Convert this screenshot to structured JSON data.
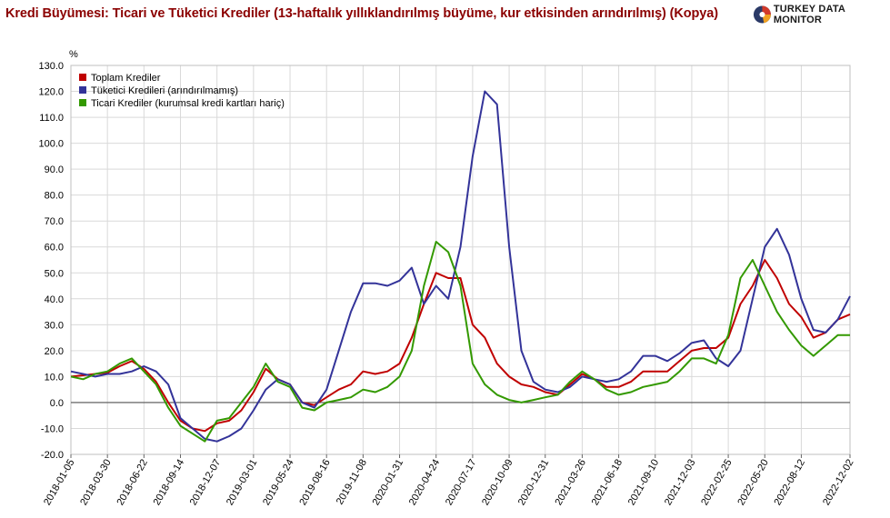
{
  "title": "Kredi Büyümesi: Ticari ve Tüketici Krediler (13-haftalık yıllıklandırılmış büyüme, kur etkisinden arındırılmış) (Kopya)",
  "brand": "TURKEY DATA MONITOR",
  "chart_data": {
    "type": "line",
    "ylabel": "%",
    "ylim": [
      -20,
      130
    ],
    "y_ticks": [
      "-20.0",
      "-10.0",
      "0.0",
      "10.0",
      "20.0",
      "30.0",
      "40.0",
      "50.0",
      "60.0",
      "70.0",
      "80.0",
      "90.0",
      "100.0",
      "110.0",
      "120.0",
      "130.0"
    ],
    "x_tick_labels": [
      "2018-01-05",
      "2018-03-30",
      "2018-06-22",
      "2018-09-14",
      "2018-12-07",
      "2019-03-01",
      "2019-05-24",
      "2019-08-16",
      "2019-11-08",
      "2020-01-31",
      "2020-04-24",
      "2020-07-17",
      "2020-10-09",
      "2020-12-31",
      "2021-03-26",
      "2021-06-18",
      "2021-09-10",
      "2021-12-03",
      "2022-02-25",
      "2022-05-20",
      "2022-08-12",
      "2022-12-02"
    ],
    "x_range": [
      "2018-01-05",
      "2022-12-02"
    ],
    "grid": true,
    "zero_line": true,
    "legend_position": "top-left",
    "series": [
      {
        "name": "Toplam Krediler",
        "color": "#c00000",
        "points": [
          [
            "2018-01-05",
            10
          ],
          [
            "2018-02-02",
            10.5
          ],
          [
            "2018-03-02",
            11
          ],
          [
            "2018-03-30",
            11.5
          ],
          [
            "2018-04-27",
            14
          ],
          [
            "2018-05-25",
            16
          ],
          [
            "2018-06-22",
            13
          ],
          [
            "2018-07-20",
            8
          ],
          [
            "2018-08-17",
            0
          ],
          [
            "2018-09-14",
            -7
          ],
          [
            "2018-10-12",
            -10
          ],
          [
            "2018-11-09",
            -11
          ],
          [
            "2018-12-07",
            -8
          ],
          [
            "2019-01-04",
            -7
          ],
          [
            "2019-02-01",
            -3
          ],
          [
            "2019-03-01",
            4
          ],
          [
            "2019-03-29",
            13
          ],
          [
            "2019-04-26",
            9
          ],
          [
            "2019-05-24",
            7
          ],
          [
            "2019-06-21",
            0
          ],
          [
            "2019-07-19",
            -1
          ],
          [
            "2019-08-16",
            2
          ],
          [
            "2019-09-13",
            5
          ],
          [
            "2019-10-11",
            7
          ],
          [
            "2019-11-08",
            12
          ],
          [
            "2019-12-06",
            11
          ],
          [
            "2020-01-03",
            12
          ],
          [
            "2020-01-31",
            15
          ],
          [
            "2020-02-28",
            25
          ],
          [
            "2020-03-27",
            38
          ],
          [
            "2020-04-24",
            50
          ],
          [
            "2020-05-22",
            48
          ],
          [
            "2020-06-19",
            48
          ],
          [
            "2020-07-17",
            30
          ],
          [
            "2020-08-14",
            25
          ],
          [
            "2020-09-11",
            15
          ],
          [
            "2020-10-09",
            10
          ],
          [
            "2020-11-06",
            7
          ],
          [
            "2020-12-04",
            6
          ],
          [
            "2020-12-31",
            4
          ],
          [
            "2021-01-29",
            3
          ],
          [
            "2021-02-26",
            7
          ],
          [
            "2021-03-26",
            11
          ],
          [
            "2021-04-23",
            9
          ],
          [
            "2021-05-21",
            6
          ],
          [
            "2021-06-18",
            6
          ],
          [
            "2021-07-16",
            8
          ],
          [
            "2021-08-13",
            12
          ],
          [
            "2021-09-10",
            12
          ],
          [
            "2021-10-08",
            12
          ],
          [
            "2021-11-05",
            16
          ],
          [
            "2021-12-03",
            20
          ],
          [
            "2021-12-31",
            21
          ],
          [
            "2022-01-28",
            21
          ],
          [
            "2022-02-25",
            25
          ],
          [
            "2022-03-25",
            38
          ],
          [
            "2022-04-22",
            45
          ],
          [
            "2022-05-20",
            55
          ],
          [
            "2022-06-17",
            48
          ],
          [
            "2022-07-15",
            38
          ],
          [
            "2022-08-12",
            33
          ],
          [
            "2022-09-09",
            25
          ],
          [
            "2022-10-07",
            27
          ],
          [
            "2022-11-04",
            32
          ],
          [
            "2022-12-02",
            34
          ]
        ]
      },
      {
        "name": "Tüketici Kredileri (arındırılmamış)",
        "color": "#333399",
        "points": [
          [
            "2018-01-05",
            12
          ],
          [
            "2018-02-02",
            11
          ],
          [
            "2018-03-02",
            10
          ],
          [
            "2018-03-30",
            11
          ],
          [
            "2018-04-27",
            11
          ],
          [
            "2018-05-25",
            12
          ],
          [
            "2018-06-22",
            14
          ],
          [
            "2018-07-20",
            12
          ],
          [
            "2018-08-17",
            7
          ],
          [
            "2018-09-14",
            -6
          ],
          [
            "2018-10-12",
            -10
          ],
          [
            "2018-11-09",
            -14
          ],
          [
            "2018-12-07",
            -15
          ],
          [
            "2019-01-04",
            -13
          ],
          [
            "2019-02-01",
            -10
          ],
          [
            "2019-03-01",
            -3
          ],
          [
            "2019-03-29",
            5
          ],
          [
            "2019-04-26",
            9
          ],
          [
            "2019-05-24",
            7
          ],
          [
            "2019-06-21",
            0
          ],
          [
            "2019-07-19",
            -2
          ],
          [
            "2019-08-16",
            5
          ],
          [
            "2019-09-13",
            20
          ],
          [
            "2019-10-11",
            35
          ],
          [
            "2019-11-08",
            46
          ],
          [
            "2019-12-06",
            46
          ],
          [
            "2020-01-03",
            45
          ],
          [
            "2020-01-31",
            47
          ],
          [
            "2020-02-28",
            52
          ],
          [
            "2020-03-27",
            38
          ],
          [
            "2020-04-24",
            45
          ],
          [
            "2020-05-22",
            40
          ],
          [
            "2020-06-19",
            60
          ],
          [
            "2020-07-17",
            95
          ],
          [
            "2020-08-14",
            120
          ],
          [
            "2020-09-11",
            115
          ],
          [
            "2020-10-09",
            60
          ],
          [
            "2020-11-06",
            20
          ],
          [
            "2020-12-04",
            8
          ],
          [
            "2020-12-31",
            5
          ],
          [
            "2021-01-29",
            4
          ],
          [
            "2021-02-26",
            6
          ],
          [
            "2021-03-26",
            10
          ],
          [
            "2021-04-23",
            9
          ],
          [
            "2021-05-21",
            8
          ],
          [
            "2021-06-18",
            9
          ],
          [
            "2021-07-16",
            12
          ],
          [
            "2021-08-13",
            18
          ],
          [
            "2021-09-10",
            18
          ],
          [
            "2021-10-08",
            16
          ],
          [
            "2021-11-05",
            19
          ],
          [
            "2021-12-03",
            23
          ],
          [
            "2021-12-31",
            24
          ],
          [
            "2022-01-28",
            17
          ],
          [
            "2022-02-25",
            14
          ],
          [
            "2022-03-25",
            20
          ],
          [
            "2022-04-22",
            40
          ],
          [
            "2022-05-20",
            60
          ],
          [
            "2022-06-17",
            67
          ],
          [
            "2022-07-15",
            57
          ],
          [
            "2022-08-12",
            40
          ],
          [
            "2022-09-09",
            28
          ],
          [
            "2022-10-07",
            27
          ],
          [
            "2022-11-04",
            32
          ],
          [
            "2022-12-02",
            41
          ]
        ]
      },
      {
        "name": "Ticari Krediler (kurumsal kredi kartları hariç)",
        "color": "#339900",
        "points": [
          [
            "2018-01-05",
            10
          ],
          [
            "2018-02-02",
            9
          ],
          [
            "2018-03-02",
            11
          ],
          [
            "2018-03-30",
            12
          ],
          [
            "2018-04-27",
            15
          ],
          [
            "2018-05-25",
            17
          ],
          [
            "2018-06-22",
            12
          ],
          [
            "2018-07-20",
            7
          ],
          [
            "2018-08-17",
            -2
          ],
          [
            "2018-09-14",
            -9
          ],
          [
            "2018-10-12",
            -12
          ],
          [
            "2018-11-09",
            -15
          ],
          [
            "2018-12-07",
            -7
          ],
          [
            "2019-01-04",
            -6
          ],
          [
            "2019-02-01",
            0
          ],
          [
            "2019-03-01",
            6
          ],
          [
            "2019-03-29",
            15
          ],
          [
            "2019-04-26",
            8
          ],
          [
            "2019-05-24",
            6
          ],
          [
            "2019-06-21",
            -2
          ],
          [
            "2019-07-19",
            -3
          ],
          [
            "2019-08-16",
            0
          ],
          [
            "2019-09-13",
            1
          ],
          [
            "2019-10-11",
            2
          ],
          [
            "2019-11-08",
            5
          ],
          [
            "2019-12-06",
            4
          ],
          [
            "2020-01-03",
            6
          ],
          [
            "2020-01-31",
            10
          ],
          [
            "2020-02-28",
            20
          ],
          [
            "2020-03-27",
            45
          ],
          [
            "2020-04-24",
            62
          ],
          [
            "2020-05-22",
            58
          ],
          [
            "2020-06-19",
            45
          ],
          [
            "2020-07-17",
            15
          ],
          [
            "2020-08-14",
            7
          ],
          [
            "2020-09-11",
            3
          ],
          [
            "2020-10-09",
            1
          ],
          [
            "2020-11-06",
            0
          ],
          [
            "2020-12-04",
            1
          ],
          [
            "2020-12-31",
            2
          ],
          [
            "2021-01-29",
            3
          ],
          [
            "2021-02-26",
            8
          ],
          [
            "2021-03-26",
            12
          ],
          [
            "2021-04-23",
            9
          ],
          [
            "2021-05-21",
            5
          ],
          [
            "2021-06-18",
            3
          ],
          [
            "2021-07-16",
            4
          ],
          [
            "2021-08-13",
            6
          ],
          [
            "2021-09-10",
            7
          ],
          [
            "2021-10-08",
            8
          ],
          [
            "2021-11-05",
            12
          ],
          [
            "2021-12-03",
            17
          ],
          [
            "2021-12-31",
            17
          ],
          [
            "2022-01-28",
            15
          ],
          [
            "2022-02-25",
            26
          ],
          [
            "2022-03-25",
            48
          ],
          [
            "2022-04-22",
            55
          ],
          [
            "2022-05-20",
            45
          ],
          [
            "2022-06-17",
            35
          ],
          [
            "2022-07-15",
            28
          ],
          [
            "2022-08-12",
            22
          ],
          [
            "2022-09-09",
            18
          ],
          [
            "2022-10-07",
            22
          ],
          [
            "2022-11-04",
            26
          ],
          [
            "2022-12-02",
            26
          ]
        ]
      }
    ]
  }
}
